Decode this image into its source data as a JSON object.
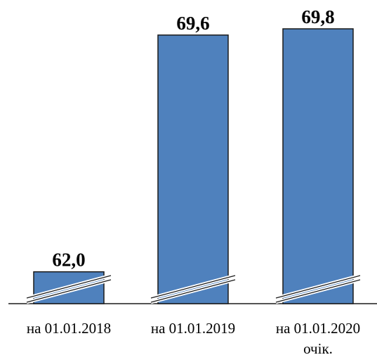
{
  "chart_data": {
    "type": "bar",
    "title": "",
    "xlabel": "",
    "ylabel": "",
    "categories": [
      [
        "на 01.01.2018"
      ],
      [
        "на 01.01.2019"
      ],
      [
        "на 01.01.2020",
        "очік."
      ]
    ],
    "values": [
      62.0,
      69.6,
      69.8
    ],
    "value_labels": [
      "62,0",
      "69,6",
      "69,8"
    ],
    "bar_color": "#4f81bd",
    "axis_break": true,
    "y_axis_visible": false,
    "grid": false,
    "legend": "none"
  }
}
